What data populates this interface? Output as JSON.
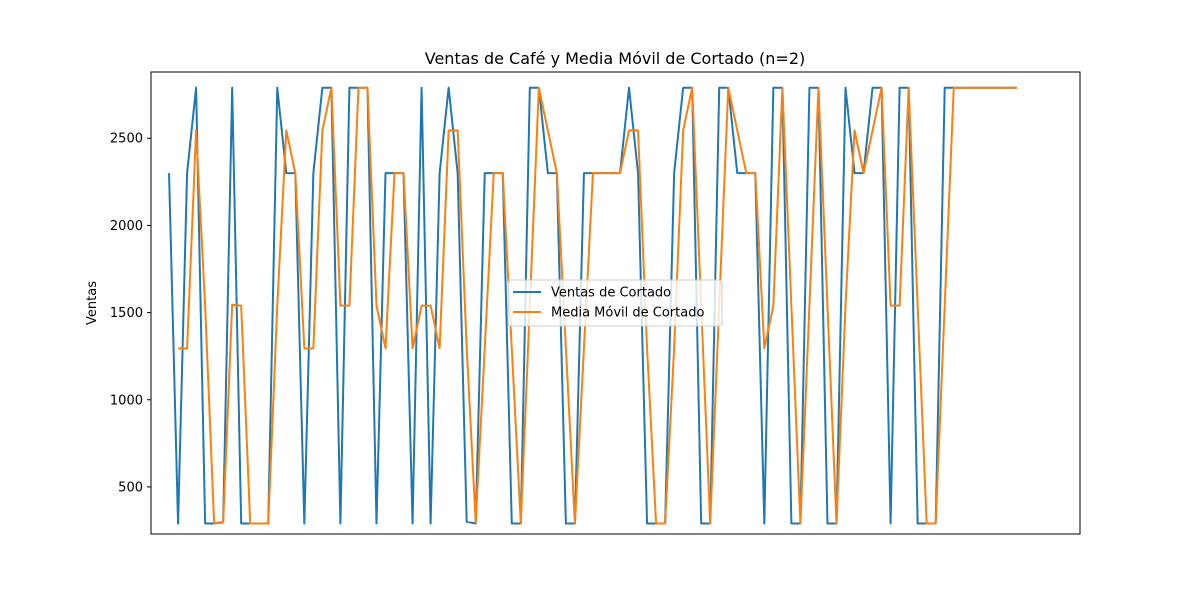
{
  "chart_data": {
    "type": "line",
    "title": "Ventas de Café y Media Móvil de Cortado (n=2)",
    "xlabel": "",
    "ylabel": "Ventas",
    "ylim": [
      230,
      2880
    ],
    "xlim": [
      -2,
      101
    ],
    "yticks": [
      500,
      1000,
      1500,
      2000,
      2500
    ],
    "grid": false,
    "legend_position": "center",
    "x": [
      0,
      1,
      2,
      3,
      4,
      5,
      6,
      7,
      8,
      9,
      10,
      11,
      12,
      13,
      14,
      15,
      16,
      17,
      18,
      19,
      20,
      21,
      22,
      23,
      24,
      25,
      26,
      27,
      28,
      29,
      30,
      31,
      32,
      33,
      34,
      35,
      36,
      37,
      38,
      39,
      40,
      41,
      42,
      43,
      44,
      45,
      46,
      47,
      48,
      49,
      50,
      51,
      52,
      53,
      54,
      55,
      56,
      57,
      58,
      59,
      60,
      61,
      62,
      63,
      64,
      65,
      66,
      67,
      68,
      69,
      70,
      71,
      72,
      73,
      74,
      75,
      76,
      77,
      78,
      79,
      80,
      81,
      82,
      83,
      84,
      85,
      86,
      87,
      88,
      89,
      90,
      91,
      92,
      93,
      94
    ],
    "series": [
      {
        "name": "Ventas de Cortado",
        "color": "#1f77b4",
        "values": [
          2300,
          290,
          2300,
          2790,
          290,
          290,
          300,
          2790,
          290,
          290,
          290,
          290,
          2790,
          2300,
          2300,
          290,
          2300,
          2790,
          2790,
          290,
          2790,
          2790,
          2790,
          290,
          2300,
          2300,
          2300,
          290,
          2790,
          290,
          2300,
          2790,
          2300,
          300,
          290,
          2300,
          2300,
          2300,
          290,
          290,
          2790,
          2790,
          2300,
          2300,
          290,
          290,
          2300,
          2300,
          2300,
          2300,
          2300,
          2790,
          2300,
          290,
          290,
          290,
          2300,
          2790,
          2790,
          290,
          290,
          2790,
          2790,
          2300,
          2300,
          2300,
          290,
          2790,
          2790,
          290,
          290,
          2790,
          2790,
          290,
          290,
          2790,
          2300,
          2300,
          2790,
          2790,
          290,
          2790,
          2790,
          290,
          290,
          290,
          2790,
          2790,
          2790,
          2790,
          2790,
          2790,
          2790,
          2790,
          2790
        ]
      },
      {
        "name": "Media Móvil de Cortado",
        "color": "#ff7f0e",
        "values": [
          null,
          1295,
          1295,
          2545,
          1540,
          290,
          295,
          1545,
          1540,
          290,
          290,
          290,
          1540,
          2545,
          2300,
          1295,
          1295,
          2545,
          2790,
          1540,
          1540,
          2790,
          2790,
          1540,
          1295,
          2300,
          2300,
          1295,
          1540,
          1540,
          1295,
          2545,
          2545,
          1300,
          295,
          1295,
          2300,
          2300,
          1295,
          290,
          1540,
          2790,
          2545,
          2300,
          1295,
          290,
          1295,
          2300,
          2300,
          2300,
          2300,
          2545,
          2545,
          1295,
          290,
          290,
          1295,
          2545,
          2790,
          1540,
          290,
          1540,
          2790,
          2545,
          2300,
          2300,
          1295,
          1540,
          2790,
          1540,
          290,
          1540,
          2790,
          1540,
          290,
          1540,
          2545,
          2300,
          2545,
          2790,
          1540,
          1540,
          2790,
          1540,
          290,
          290,
          1540,
          2790,
          2790,
          2790,
          2790,
          2790,
          2790,
          2790,
          2790
        ]
      }
    ]
  }
}
